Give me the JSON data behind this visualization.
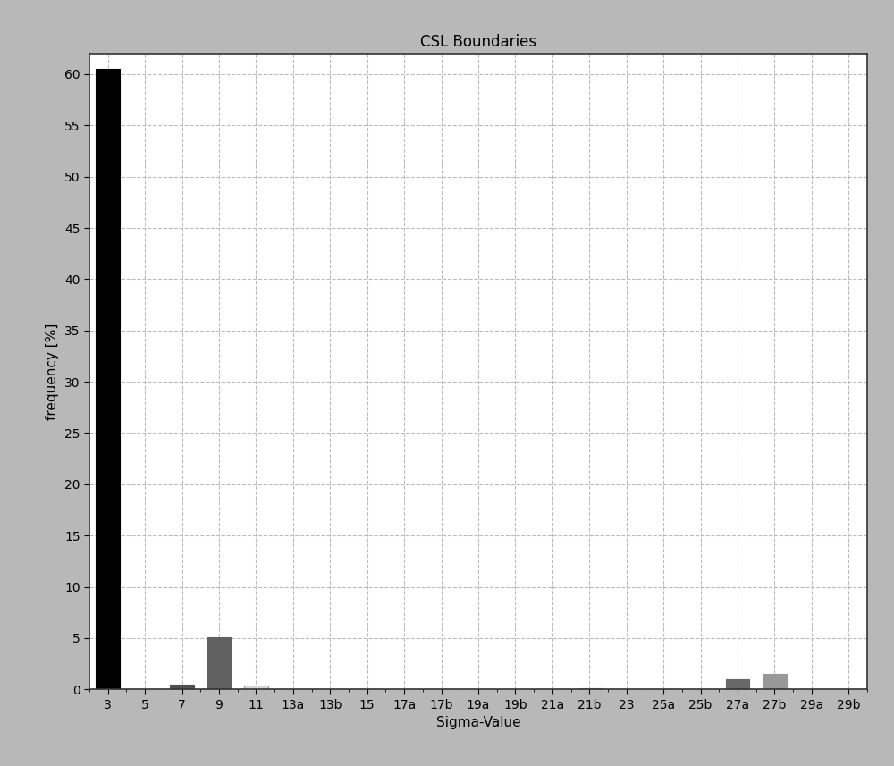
{
  "title": "CSL Boundaries",
  "xlabel": "Sigma-Value",
  "ylabel": "frequency [%]",
  "categories": [
    "3",
    "5",
    "7",
    "9",
    "11",
    "13a",
    "13b",
    "15",
    "17a",
    "17b",
    "19a",
    "19b",
    "21a",
    "21b",
    "23",
    "25a",
    "25b",
    "27a",
    "27b",
    "29a",
    "29b"
  ],
  "values": [
    60.5,
    0.0,
    0.5,
    5.1,
    0.4,
    0.0,
    0.0,
    0.0,
    0.0,
    0.0,
    0.0,
    0.0,
    0.0,
    0.1,
    0.0,
    0.0,
    0.0,
    1.0,
    1.5,
    0.0,
    0.0
  ],
  "bar_colors": [
    "#000000",
    "#f0f0f0",
    "#505050",
    "#606060",
    "#d8d8d8",
    "#f0f0f0",
    "#f0f0f0",
    "#f0f0f0",
    "#f0f0f0",
    "#f0f0f0",
    "#f0f0f0",
    "#f0f0f0",
    "#f0f0f0",
    "#909090",
    "#f0f0f0",
    "#f0f0f0",
    "#f0f0f0",
    "#686868",
    "#989898",
    "#f0f0f0",
    "#f0f0f0"
  ],
  "bar_edge_colors": [
    "#000000",
    "#999999",
    "#505050",
    "#606060",
    "#999999",
    "#999999",
    "#999999",
    "#999999",
    "#999999",
    "#999999",
    "#999999",
    "#999999",
    "#999999",
    "#909090",
    "#999999",
    "#999999",
    "#999999",
    "#686868",
    "#989898",
    "#999999",
    "#999999"
  ],
  "ylim": [
    0,
    62
  ],
  "yticks": [
    0,
    5,
    10,
    15,
    20,
    25,
    30,
    35,
    40,
    45,
    50,
    55,
    60
  ],
  "background_color": "#b8b8b8",
  "plot_bg_color": "#ffffff",
  "grid_color": "#bbbbbb",
  "title_fontsize": 12,
  "axis_label_fontsize": 11,
  "tick_fontsize": 10,
  "bar_width": 0.65
}
